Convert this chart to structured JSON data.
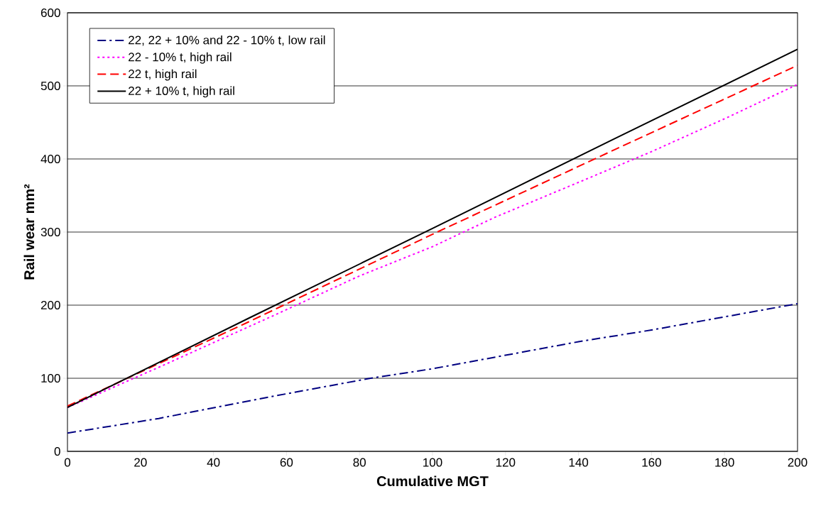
{
  "chart_data": {
    "type": "line",
    "xlabel": "Cumulative MGT",
    "ylabel": "Rail wear mm²",
    "xlim": [
      0,
      200
    ],
    "ylim": [
      0,
      600
    ],
    "xticks": [
      0,
      20,
      40,
      60,
      80,
      100,
      120,
      140,
      160,
      180,
      200
    ],
    "yticks": [
      0,
      100,
      200,
      300,
      400,
      500,
      600
    ],
    "grid": "y",
    "legend": "top left",
    "marker": "none",
    "series": [
      {
        "name": "22, 22 + 10% and 22 - 10% t, low rail",
        "color": "#000080",
        "line_style": "dashdot",
        "x": [
          0,
          25,
          57,
          83,
          100,
          140,
          160,
          200
        ],
        "values": [
          25,
          45,
          76,
          100,
          113,
          150,
          166,
          202
        ]
      },
      {
        "name": "22 - 10% t, high rail",
        "color": "#ff00ff",
        "line_style": "dotted",
        "x": [
          0,
          25,
          57,
          80,
          100,
          117,
          140,
          160,
          180,
          200
        ],
        "values": [
          60,
          115,
          187,
          240,
          280,
          320,
          368,
          410,
          455,
          502
        ]
      },
      {
        "name": "22 t, high rail",
        "color": "#ff0000",
        "line_style": "dashed",
        "x": [
          0,
          50,
          100,
          150,
          200
        ],
        "values": [
          62,
          178,
          297,
          413,
          528
        ]
      },
      {
        "name": "22 + 10% t, high rail",
        "color": "#000000",
        "line_style": "solid",
        "x": [
          0,
          50,
          100,
          150,
          200
        ],
        "values": [
          60,
          183,
          305,
          428,
          550
        ]
      }
    ]
  }
}
